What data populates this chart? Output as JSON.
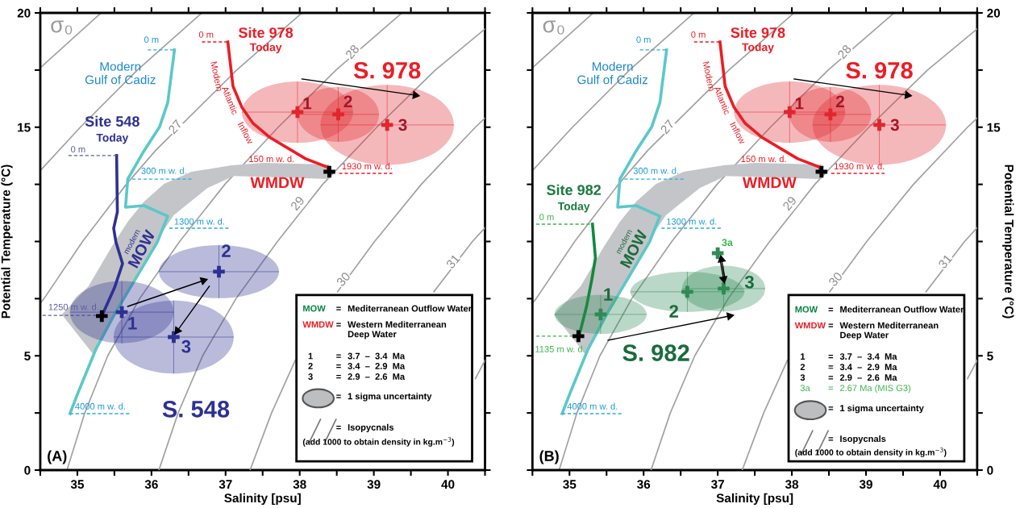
{
  "chart_data": [
    {
      "type": "line",
      "title": "(A)",
      "xlabel": "Salinity [psu]",
      "ylabel": "Potential Temperature (°C)",
      "xlim": [
        34.5,
        40.5
      ],
      "xticks": [
        {
          "value": 34.5,
          "label": null
        },
        35,
        {
          "value": 35.5,
          "label": null
        },
        36,
        {
          "value": 36.5,
          "label": null
        },
        37,
        {
          "value": 37.5,
          "label": null
        },
        38,
        {
          "value": 38.5,
          "label": null
        },
        39,
        {
          "value": 39.5,
          "label": null
        },
        40,
        {
          "value": 40.5,
          "label": null
        }
      ],
      "ylim": [
        0,
        20
      ],
      "yticks": [
        0,
        {
          "value": 2.5,
          "label": null
        },
        5,
        {
          "value": 7.5,
          "label": null
        },
        {
          "value": 10,
          "label": null
        },
        {
          "value": 12.5,
          "label": null
        },
        15,
        {
          "value": 17.5,
          "label": null
        },
        20
      ],
      "grid": false,
      "series": [
        {
          "color": "#a0a0a0",
          "x": [
            34.5,
            35.32
          ],
          "values": [
            17.6,
            20
          ]
        },
        {
          "color": "#a0a0a0",
          "x": [
            34.5,
            35.04,
            35.81,
            36.68
          ],
          "values": [
            13.1,
            15,
            17.5,
            20
          ]
        },
        {
          "color": "#a0a0a0",
          "x": [
            34.5,
            34.55,
            35.07,
            35.66,
            36.06,
            37.15,
            38.03
          ],
          "values": [
            7.3,
            7.5,
            10,
            12.5,
            14.0,
            17.5,
            20
          ]
        },
        {
          "color": "#a0a0a0",
          "x": [
            34.86,
            35.1,
            35.41,
            35.84,
            36.38,
            36.99,
            37.71,
            38.49,
            39.38
          ],
          "values": [
            0,
            2.5,
            5,
            7.5,
            10,
            12.5,
            15,
            17.5,
            20
          ]
        },
        {
          "color": "#a0a0a0",
          "x": [
            36.1,
            36.36,
            36.69,
            37.14,
            37.7,
            38.31,
            39.04,
            39.83,
            40.5
          ],
          "values": [
            0,
            2.5,
            5,
            7.5,
            10,
            12.5,
            15,
            17.5,
            19.3
          ]
        },
        {
          "color": "#a0a0a0",
          "x": [
            37.33,
            37.62,
            37.94,
            38.2,
            38.51,
            39.01,
            39.64,
            40.37,
            40.5
          ],
          "values": [
            0,
            2.5,
            4.8,
            null,
            7.8,
            10,
            12.5,
            15,
            15.4
          ]
        },
        {
          "color": "#a0a0a0",
          "x": [
            39.81,
            40.33,
            40.5
          ],
          "values": [
            7.8,
            10,
            10.6
          ]
        },
        {
          "color": "#a0a0a0",
          "x": [
            40.37,
            40.5
          ],
          "values": [
            4.0,
            4.8
          ]
        },
        {
          "type": "area",
          "color": "#c4c5c8",
          "x": [
            38.4,
            37.51,
            37.08,
            36.54,
            36.17,
            35.9,
            35.68,
            35.47,
            35.15,
            34.79,
            35.22,
            35.5,
            36.11,
            36.3,
            36.76,
            37.11,
            38.4
          ],
          "values": [
            13.37,
            13.44,
            13.33,
            13.05,
            12.52,
            11.75,
            10.86,
            9.81,
            8.04,
            6.81,
            5.04,
            6.81,
            10.23,
            11.15,
            12.35,
            12.87,
            12.73
          ]
        },
        {
          "color": "#5bc8c8",
          "x": [
            36.31,
            36.22,
            36.11,
            35.9,
            35.68,
            35.65,
            35.9,
            36.22,
            36.11,
            36.08,
            35.5,
            35.25,
            35.01,
            34.9
          ],
          "values": [
            18.38,
            16.08,
            15.02,
            13.97,
            12.73,
            11.5,
            11.57,
            11.11,
            10.23,
            9.98,
            6.81,
            5.29,
            3.39,
            2.47
          ]
        },
        {
          "color": "#2e3192",
          "x": [
            35.53,
            35.54,
            35.49,
            35.52,
            35.61,
            35.5,
            35.34
          ],
          "values": [
            13.76,
            11.29,
            10.58,
            9.98,
            9.03,
            7.97,
            6.81
          ]
        },
        {
          "color": "#ed1c24",
          "x": [
            37.03,
            37.1,
            37.22,
            37.37,
            37.59,
            38.08,
            38.37,
            38.4
          ],
          "values": [
            18.73,
            16.79,
            15.87,
            15.17,
            14.57,
            13.62,
            13.26,
            13.05
          ]
        },
        {
          "line_style": "dashed",
          "color": "#29abe2",
          "x": [
            35.95,
            36.31
          ],
          "values": [
            18.38,
            18.38
          ]
        },
        {
          "line_style": "dashed",
          "color": "#29abe2",
          "x": [
            35.74,
            36.54
          ],
          "values": [
            12.73,
            12.73
          ]
        },
        {
          "line_style": "dashed",
          "color": "#29abe2",
          "x": [
            36.24,
            37.05
          ],
          "values": [
            10.58,
            10.58
          ]
        },
        {
          "line_style": "dashed",
          "color": "#29abe2",
          "x": [
            34.9,
            35.72
          ],
          "values": [
            2.47,
            2.47
          ]
        },
        {
          "line_style": "dashed",
          "color": "#ed1c24",
          "x": [
            36.68,
            37.03
          ],
          "values": [
            18.73,
            18.73
          ]
        },
        {
          "line_style": "dashed",
          "color": "#ed1c24",
          "x": [
            38.53,
            39.25
          ],
          "values": [
            12.98,
            12.98
          ]
        },
        {
          "line_style": "dashed",
          "color": "#5b5ea6",
          "x": [
            34.88,
            35.53
          ],
          "values": [
            13.76,
            13.76
          ]
        },
        {
          "line_style": "dashed",
          "color": "#5b5ea6",
          "x": [
            34.53,
            35.34
          ],
          "values": [
            6.77,
            6.77
          ]
        },
        {
          "type": "scatter",
          "marker": "cross",
          "color": "#2e3192",
          "x": [
            35.6,
            36.91,
            36.3
          ],
          "values": [
            6.91,
            8.68,
            5.82
          ],
          "xerrors": [
            0.7,
            0.81,
            0.81
          ],
          "errors": [
            1.36,
            1.16,
            1.6
          ]
        },
        {
          "type": "scatter",
          "marker": "cross",
          "color": "#e0262e",
          "x": [
            37.97,
            38.52,
            39.18
          ],
          "values": [
            15.66,
            15.56,
            15.1
          ],
          "xerrors": [
            0.75,
            0.55,
            0.9
          ],
          "errors": [
            1.34,
            1.2,
            1.75
          ]
        },
        {
          "type": "scatter",
          "marker": "cross",
          "color": "#000000",
          "x": [
            35.33,
            38.4
          ],
          "values": [
            6.74,
            13.05
          ]
        },
        {
          "marker": "triangle",
          "color": "#000000",
          "x": [
            35.68,
            36.7
          ],
          "values": [
            7.16,
            8.29
          ]
        },
        {
          "marker": "triangle",
          "color": "#000000",
          "x": [
            36.78,
            36.35
          ],
          "values": [
            8.04,
            6.1
          ]
        },
        {
          "marker": "triangle",
          "color": "#000000",
          "x": [
            38.03,
            39.56
          ],
          "values": [
            17.11,
            16.4
          ]
        }
      ],
      "annotations": [
        {
          "text": "27",
          "x": 36.33,
          "y": 14.99
        },
        {
          "text": "28",
          "x": 38.72,
          "y": 18.27
        },
        {
          "text": "29",
          "x": 37.98,
          "y": 11.64
        },
        {
          "text": "30",
          "x": 38.6,
          "y": 8.32
        },
        {
          "text": "31",
          "x": 40.08,
          "y": 9.1
        },
        "σ₀",
        "0 m",
        "300 m w. d.",
        "1300 m w. d.",
        "4000 m w. d.",
        "Modern\nGulf of Cadiz",
        "0 m",
        "150 m w. d.",
        "1930 m w. d.",
        "Site 978",
        "Today",
        "Modern",
        "Atlantic",
        "Inflow",
        "WMDW",
        "S. 978",
        "1",
        "2",
        "3",
        "modern",
        "MOW",
        "Site 548",
        "Today",
        "0 m",
        "1250 m w. d.",
        "1",
        "2",
        "3",
        "S. 548",
        "MOW\t=\tMediterranean Outflow Water",
        "WMDW\t=\tWestern Mediterranean\nDeep Water",
        "1\t=\t3.7  –  3.4  Ma",
        "2\t=\t3.4  –  2.9  Ma",
        "3\t=\t2.9  –  2.6  Ma",
        "\t=\t1 sigma uncertainty",
        "\t=\tIsopycnals",
        "(add 1000 to obtain density in kg.m$^{−3}$)"
      ]
    },
    {
      "type": "line",
      "title": "(B)",
      "xlabel": "Salinity [psu]",
      "y2label": "Potential Temperature (°C)",
      "xlim": [
        34.5,
        40.5
      ],
      "xticks": [
        {
          "value": 34.5,
          "label": null
        },
        35,
        {
          "value": 35.5,
          "label": null
        },
        36,
        {
          "value": 36.5,
          "label": null
        },
        37,
        {
          "value": 37.5,
          "label": null
        },
        38,
        {
          "value": 38.5,
          "label": null
        },
        39,
        {
          "value": 39.5,
          "label": null
        },
        40,
        {
          "value": 40.5,
          "label": null
        }
      ],
      "ylim": [
        0,
        20
      ],
      "yticks": [
        0,
        {
          "value": 2.5,
          "label": null
        },
        5,
        {
          "value": 7.5,
          "label": null
        },
        {
          "value": 10,
          "label": null
        },
        {
          "value": 12.5,
          "label": null
        },
        15,
        {
          "value": 17.5,
          "label": null
        },
        20
      ],
      "grid": false,
      "series": [
        {
          "color": "#a0a0a0",
          "x": [
            34.5,
            35.32
          ],
          "values": [
            17.6,
            20
          ]
        },
        {
          "color": "#a0a0a0",
          "x": [
            34.5,
            35.04,
            35.81,
            36.68
          ],
          "values": [
            13.1,
            15,
            17.5,
            20
          ]
        },
        {
          "color": "#a0a0a0",
          "x": [
            34.5,
            34.55,
            35.07,
            35.66,
            36.06,
            37.15,
            38.03
          ],
          "values": [
            7.3,
            7.5,
            10,
            12.5,
            14.0,
            17.5,
            20
          ]
        },
        {
          "color": "#a0a0a0",
          "x": [
            34.86,
            35.1,
            35.41,
            35.84,
            36.38,
            36.99,
            37.71,
            38.49,
            39.38
          ],
          "values": [
            0,
            2.5,
            5,
            7.5,
            10,
            12.5,
            15,
            17.5,
            20
          ]
        },
        {
          "color": "#a0a0a0",
          "x": [
            36.1,
            36.36,
            36.69,
            37.14,
            37.7,
            38.31,
            39.04,
            39.83,
            40.5
          ],
          "values": [
            0,
            2.5,
            5,
            7.5,
            10,
            12.5,
            15,
            17.5,
            19.3
          ]
        },
        {
          "color": "#a0a0a0",
          "x": [
            37.33,
            37.62,
            37.94,
            38.2,
            38.51,
            39.01,
            39.64,
            40.37,
            40.5
          ],
          "values": [
            0,
            2.5,
            4.8,
            null,
            7.8,
            10,
            12.5,
            15,
            15.4
          ]
        },
        {
          "color": "#a0a0a0",
          "x": [
            39.81,
            40.33,
            40.5
          ],
          "values": [
            7.8,
            10,
            10.6
          ]
        },
        {
          "color": "#a0a0a0",
          "x": [
            40.37,
            40.5
          ],
          "values": [
            4.0,
            4.8
          ]
        },
        {
          "type": "area",
          "color": "#c4c5c8",
          "x": [
            38.4,
            37.51,
            37.08,
            36.54,
            36.17,
            35.9,
            35.68,
            35.47,
            35.15,
            34.79,
            35.22,
            35.5,
            36.11,
            36.3,
            36.76,
            37.11,
            38.4
          ],
          "values": [
            13.37,
            13.44,
            13.33,
            13.05,
            12.52,
            11.75,
            10.86,
            9.81,
            8.04,
            6.81,
            5.04,
            6.81,
            10.23,
            11.15,
            12.35,
            12.87,
            12.73
          ]
        },
        {
          "color": "#5bc8c8",
          "x": [
            36.31,
            36.22,
            36.11,
            35.9,
            35.68,
            35.65,
            35.9,
            36.22,
            36.11,
            36.08,
            35.5,
            35.25,
            35.01,
            34.9
          ],
          "values": [
            18.38,
            16.08,
            15.02,
            13.97,
            12.73,
            11.5,
            11.57,
            11.11,
            10.23,
            9.98,
            6.81,
            5.29,
            3.39,
            2.47
          ]
        },
        {
          "color": "#0f8a3c",
          "x": [
            35.31,
            35.35,
            35.3,
            35.23,
            35.14,
            35.12
          ],
          "values": [
            10.76,
            9.28,
            8.32,
            7.16,
            6.0,
            5.86
          ]
        },
        {
          "color": "#ed1c24",
          "x": [
            37.03,
            37.1,
            37.22,
            37.37,
            37.59,
            38.08,
            38.37,
            38.4
          ],
          "values": [
            18.73,
            16.79,
            15.87,
            15.17,
            14.57,
            13.62,
            13.26,
            13.05
          ]
        },
        {
          "line_style": "dashed",
          "color": "#29abe2",
          "x": [
            35.95,
            36.31
          ],
          "values": [
            18.38,
            18.38
          ]
        },
        {
          "line_style": "dashed",
          "color": "#29abe2",
          "x": [
            35.74,
            36.54
          ],
          "values": [
            12.73,
            12.73
          ]
        },
        {
          "line_style": "dashed",
          "color": "#29abe2",
          "x": [
            36.24,
            37.05
          ],
          "values": [
            10.58,
            10.58
          ]
        },
        {
          "line_style": "dashed",
          "color": "#29abe2",
          "x": [
            34.9,
            35.72
          ],
          "values": [
            2.47,
            2.47
          ]
        },
        {
          "line_style": "dashed",
          "color": "#ed1c24",
          "x": [
            36.68,
            37.03
          ],
          "values": [
            18.73,
            18.73
          ]
        },
        {
          "line_style": "dashed",
          "color": "#ed1c24",
          "x": [
            38.53,
            39.25
          ],
          "values": [
            12.98,
            12.98
          ]
        },
        {
          "line_style": "dashed",
          "color": "#3ab54a",
          "x": [
            34.55,
            35.31
          ],
          "values": [
            10.76,
            10.76
          ]
        },
        {
          "line_style": "dashed",
          "color": "#3ab54a",
          "x": [
            34.55,
            35.12
          ],
          "values": [
            5.86,
            5.86
          ]
        },
        {
          "type": "scatter",
          "marker": "cross",
          "color": "#2f8a55",
          "x": [
            35.42,
            36.59,
            37.08,
            37.0
          ],
          "values": [
            6.81,
            7.8,
            7.94,
            9.49
          ],
          "xerrors": [
            0.62,
            0.77,
            0.56,
            null
          ],
          "errors": [
            0.85,
            0.88,
            1.0,
            null
          ]
        },
        {
          "type": "scatter",
          "marker": "cross",
          "color": "#e0262e",
          "x": [
            37.97,
            38.52,
            39.18
          ],
          "values": [
            15.66,
            15.56,
            15.1
          ],
          "xerrors": [
            0.75,
            0.55,
            0.9
          ],
          "errors": [
            1.34,
            1.2,
            1.75
          ]
        },
        {
          "type": "scatter",
          "marker": "cross",
          "color": "#000000",
          "x": [
            35.12,
            38.4
          ],
          "values": [
            5.86,
            13.05
          ]
        },
        {
          "marker": "triangle",
          "color": "#000000",
          "x": [
            35.52,
            37.16
          ],
          "values": [
            5.68,
            6.74
          ]
        },
        {
          "marker": "triangle",
          "color": "#000000",
          "x": [
            37.03,
            37.08
          ],
          "values": [
            9.21,
            8.36
          ]
        },
        {
          "marker": "triangle",
          "color": "#000000",
          "x": [
            37.1,
            37.05
          ],
          "values": [
            8.36,
            9.21
          ]
        },
        {
          "marker": "triangle",
          "color": "#000000",
          "x": [
            38.03,
            39.56
          ],
          "values": [
            17.11,
            16.4
          ]
        }
      ],
      "annotations": [
        {
          "text": "27",
          "x": 36.33,
          "y": 14.99
        },
        {
          "text": "28",
          "x": 38.72,
          "y": 18.27
        },
        {
          "text": "29",
          "x": 37.98,
          "y": 11.64
        },
        {
          "text": "30",
          "x": 38.6,
          "y": 8.32
        },
        {
          "text": "31",
          "x": 40.08,
          "y": 9.1
        },
        "σ₀",
        "0 m",
        "300 m w. d.",
        "1300 m w. d.",
        "4000 m w. d.",
        "Modern\nGulf of Cadiz",
        "0 m",
        "150 m w. d.",
        "1930 m w. d.",
        "Site 978",
        "Today",
        "Modern",
        "Atlantic",
        "Inflow",
        "WMDW",
        "S. 978",
        "1",
        "2",
        "3",
        "modern",
        "MOW",
        "Site 982",
        "Today",
        "0 m",
        "1135 m w. d.",
        "1",
        "2",
        "3",
        "3a",
        "S. 982",
        "MOW\t=\tMediterranean Outflow Water",
        "WMDW\t=\tWestern Mediterranean\nDeep Water",
        "1\t=\t3.7  –  3.4  Ma",
        "2\t=\t3.4  –  2.9  Ma",
        "3\t=\t2.9  –  2.6  Ma",
        "3a\t=\t2.67 Ma (MIS G3)",
        "\t=\t1 sigma uncertainty",
        "\t=\tIsopycnals",
        "(add 1000 to obtain density in kg.m$^{−3}$)"
      ]
    }
  ]
}
